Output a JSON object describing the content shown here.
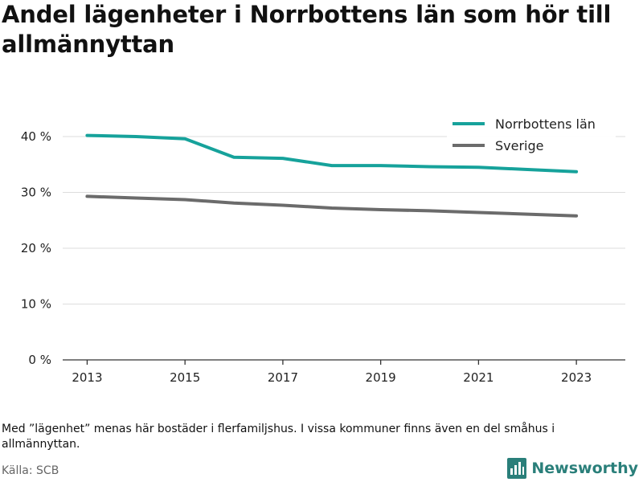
{
  "title": "Andel lägenheter i Norrbottens län som hör till allmännyttan",
  "footnote": "Med ”lägenhet” menas här bostäder i flerfamiljshus. I vissa kommuner finns även en del småhus i allmännyttan.",
  "source": "Källa: SCB",
  "brand": "Newsworthy",
  "colors": {
    "norrbotten": "#16a29b",
    "sverige": "#6b6b6b",
    "grid": "#dddddd",
    "axis": "#333333",
    "brand": "#2a7f7a"
  },
  "chart_data": {
    "type": "line",
    "x": [
      2013,
      2014,
      2015,
      2016,
      2017,
      2018,
      2019,
      2020,
      2021,
      2022,
      2023
    ],
    "xticks": [
      "2013",
      "2015",
      "2017",
      "2019",
      "2021",
      "2023"
    ],
    "yticks": [
      "0 %",
      "10 %",
      "20 %",
      "30 %",
      "40 %"
    ],
    "ylim": [
      0,
      40
    ],
    "grid": true,
    "legend": "top-right",
    "series": [
      {
        "name": "Norrbottens län",
        "color": "#16a29b",
        "values": [
          40.2,
          40.0,
          39.6,
          36.3,
          36.1,
          34.8,
          34.8,
          34.6,
          34.5,
          34.1,
          33.7
        ]
      },
      {
        "name": "Sverige",
        "color": "#6b6b6b",
        "values": [
          29.3,
          29.0,
          28.7,
          28.1,
          27.7,
          27.2,
          26.9,
          26.7,
          26.4,
          26.1,
          25.8
        ]
      }
    ]
  }
}
